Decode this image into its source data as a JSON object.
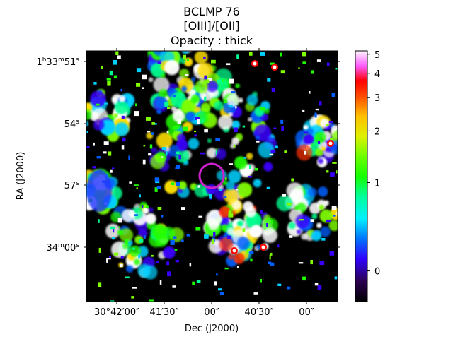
{
  "chart_data": {
    "type": "heatmap",
    "title_lines": [
      "BCLMP 76",
      "[OIII]/[OII]",
      "Opacity : thick"
    ],
    "xlabel": "Dec (J2000)",
    "ylabel": "RA (J2000)",
    "x_ticks": [
      {
        "label": "30°42′00″"
      },
      {
        "label": "41′30″"
      },
      {
        "label": "00″"
      },
      {
        "label": "40′30″"
      },
      {
        "label": "00″"
      }
    ],
    "y_ticks": [
      {
        "label": "1h33m51s"
      },
      {
        "label": "54s"
      },
      {
        "label": "57s"
      },
      {
        "label": "34m00s"
      }
    ],
    "colorbar": {
      "colormap": "gist_ncar-like",
      "ticks": [
        "0",
        "1",
        "2",
        "3",
        "4",
        "5"
      ],
      "range": [
        -0.3,
        5.2
      ]
    },
    "features": {
      "circle_color": "#cc22cc",
      "bright_clump_values_approx": [
        3.5,
        4.5,
        5.0
      ],
      "background_color": "#000000",
      "masked_color": "#ffffff"
    }
  }
}
